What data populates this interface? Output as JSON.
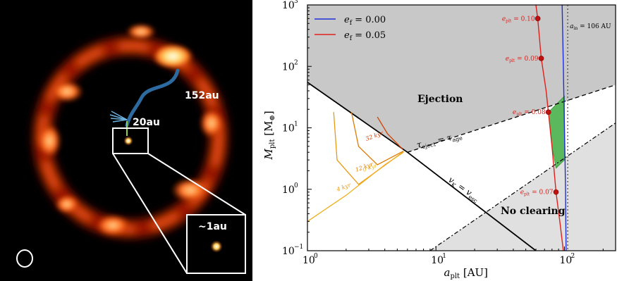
{
  "image_panel": {
    "labels": {
      "orbit_152": "152au",
      "orbit_20": "20au",
      "inset": "~1au"
    },
    "colors": {
      "background": "#000000",
      "ring_outer": "#b01e00",
      "ring_mid": "#ff6a1c",
      "ring_core": "#fff3b8",
      "track": "#2c6aa0",
      "inset_frame": "#ffffff"
    }
  },
  "chart_data": {
    "type": "line",
    "xscale": "log",
    "yscale": "log",
    "xlim": [
      1,
      250
    ],
    "ylim": [
      0.1,
      1000
    ],
    "xlabel_html": "a<sub>plt</sub> [AU]",
    "ylabel_html": "M<sub>plt</sub> [M<sub>⊕</sub>]",
    "x_ticks": [
      {
        "value": 1,
        "label": "10"
      },
      {
        "value": 10,
        "label": "10"
      },
      {
        "value": 100,
        "label": "10"
      }
    ],
    "x_tick_exponents": [
      "0",
      "1",
      "2"
    ],
    "y_ticks": [
      {
        "value": 0.1,
        "label": "10"
      },
      {
        "value": 1,
        "label": "10"
      },
      {
        "value": 10,
        "label": "10"
      },
      {
        "value": 100,
        "label": "10"
      },
      {
        "value": 1000,
        "label": "10"
      }
    ],
    "y_tick_exponents": [
      "−1",
      "0",
      "1",
      "2",
      "3"
    ],
    "legend": {
      "placement": "top-left",
      "entries": [
        {
          "label": "e",
          "sub": "f",
          "value": " = 0.00",
          "color": "#1f2fd8"
        },
        {
          "label": "e",
          "sub": "f",
          "value": " = 0.05",
          "color": "#e0201a"
        }
      ]
    },
    "region_labels": {
      "ejection": "Ejection",
      "no_clearing": "No clearing",
      "tau": "τ",
      "tau_eject_sub": "eject",
      "tau_eq": " = τ",
      "tau_age_sub": "age",
      "vk": "v",
      "vk_sub": "K",
      "vk_eq": " = v",
      "vesc_sub": "esc",
      "a_in": "a",
      "a_in_sub": "in",
      "a_in_value": " = 106 AU"
    },
    "series": [
      {
        "name": "e_f = 0.00",
        "color": "#1f2fd8",
        "points": [
          [
            96,
            1000
          ],
          [
            97,
            300
          ],
          [
            98,
            100
          ],
          [
            99,
            30
          ],
          [
            100,
            10
          ],
          [
            101,
            3
          ],
          [
            102,
            1
          ],
          [
            102.5,
            0.3
          ],
          [
            103,
            0.1
          ]
        ]
      },
      {
        "name": "e_f = 0.05",
        "color": "#e0201a",
        "points": [
          [
            60,
            1000
          ],
          [
            62,
            600
          ],
          [
            66,
            135
          ],
          [
            72,
            40
          ],
          [
            75,
            18
          ],
          [
            80,
            5
          ],
          [
            86,
            0.9
          ],
          [
            92,
            0.3
          ],
          [
            98,
            0.1
          ]
        ]
      }
    ],
    "ecc_markers": [
      {
        "label": "0.10",
        "a": 62,
        "m": 600
      },
      {
        "label": "0.09",
        "a": 66,
        "m": 135
      },
      {
        "label": "0.08",
        "a": 75,
        "m": 18
      },
      {
        "label": "0.07",
        "a": 86,
        "m": 0.9
      }
    ],
    "ecc_prefix": "e",
    "ecc_sub": "plt",
    "ecc_eq": " = ",
    "boundaries": {
      "vk_equals_vesc": [
        [
          1,
          55
        ],
        [
          6,
          4
        ],
        [
          60,
          0.1
        ]
      ],
      "tau_eject_equals_tau_age": [
        [
          6,
          4
        ],
        [
          250,
          50
        ]
      ],
      "no_clearing_line": [
        [
          9,
          0.1
        ],
        [
          250,
          12
        ]
      ],
      "a_in_au": 106
    },
    "time_contours": [
      {
        "label": "32 kyr",
        "color": "#d04000",
        "points": [
          [
            3.5,
            15
          ],
          [
            4.2,
            8
          ],
          [
            5.5,
            4.5
          ]
        ]
      },
      {
        "label": "12 kyr",
        "color": "#e07a00",
        "points": [
          [
            2.2,
            18
          ],
          [
            2.5,
            5
          ],
          [
            3.5,
            2.5
          ],
          [
            5.6,
            4.2
          ]
        ]
      },
      {
        "label": "4 kyr",
        "color": "#e89a10",
        "points": [
          [
            1.6,
            18
          ],
          [
            1.7,
            3
          ],
          [
            2.5,
            1.2
          ],
          [
            5.6,
            4.1
          ]
        ]
      },
      {
        "label": "0 kyr",
        "color": "#f0b020",
        "points": [
          [
            1,
            0.3
          ],
          [
            2,
            0.8
          ],
          [
            4,
            2.5
          ],
          [
            5.6,
            4
          ]
        ]
      }
    ],
    "colors": {
      "ejection": "#c8c8c8",
      "no_clearing": "#e0e0e0",
      "green": "#5cb85c"
    }
  }
}
